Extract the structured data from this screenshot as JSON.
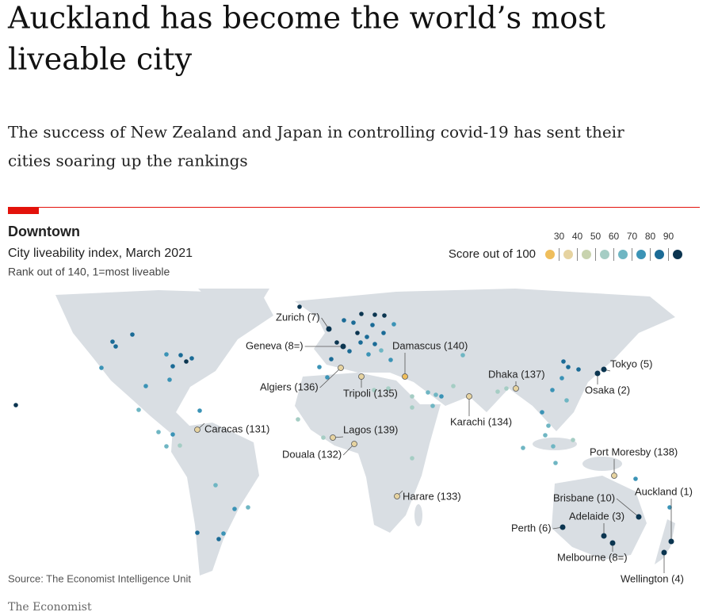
{
  "headline": "Auckland has become the world’s most liveable city",
  "headline_lines": [
    "Auckland has become the world’s most",
    "liveable city"
  ],
  "subheadline_lines": [
    "The success of New Zealand and Japan in controlling covid-19 has sent their",
    "cities soaring up the rankings"
  ],
  "chart": {
    "kicker": "Downtown",
    "title": "City liveability index, March 2021",
    "note": "Rank out of 140, 1=most liveable",
    "legend": {
      "label": "Score out of 100",
      "ticks": [
        30,
        40,
        50,
        60,
        70,
        80,
        90
      ],
      "colors": [
        "#efbe5c",
        "#e6d3a0",
        "#c8d3ae",
        "#a5cdc4",
        "#6fb6c3",
        "#3b93b6",
        "#1b6b96",
        "#0b3550"
      ]
    },
    "cities": [
      "Zurich (7)",
      "Geneva (8=)",
      "Algiers (136)",
      "Tripoli (135)",
      "Damascus (140)",
      "Dhaka (137)",
      "Karachi (134)",
      "Tokyo (5)",
      "Osaka (2)",
      "Caracas (131)",
      "Lagos (139)",
      "Douala (132)",
      "Harare (133)",
      "Port Moresby (138)",
      "Auckland (1)",
      "Brisbane (10)",
      "Adelaide (3)",
      "Perth (6)",
      "Melbourne (8=)",
      "Wellington (4)"
    ],
    "source": "Source: The Economist Intelligence Unit"
  },
  "brand": "The Economist"
}
